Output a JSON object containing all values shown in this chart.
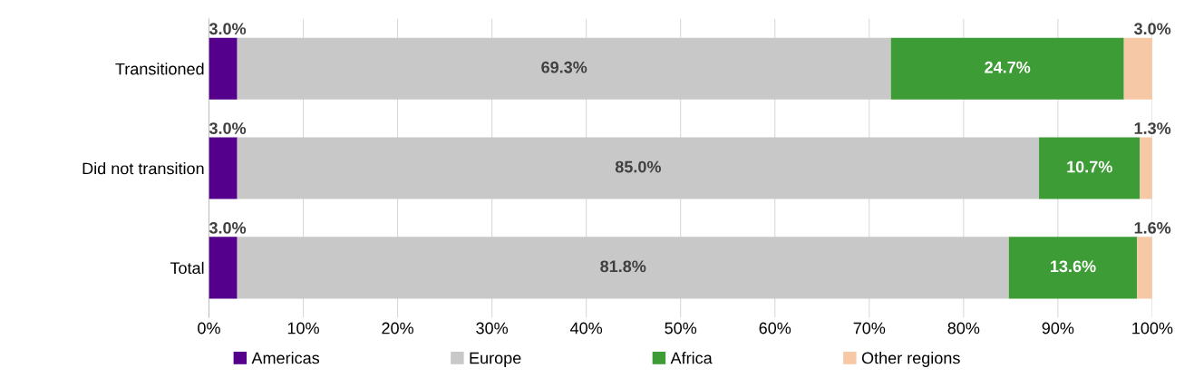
{
  "chart_data": {
    "type": "bar",
    "orientation": "horizontal",
    "stacked": true,
    "categories": [
      "Transitioned",
      "Did not transition",
      "Total"
    ],
    "series": [
      {
        "name": "Americas",
        "color": "#55008c",
        "values": [
          3.0,
          3.0,
          3.0
        ],
        "value_labels": [
          "3.0%",
          "3.0%",
          "3.0%"
        ]
      },
      {
        "name": "Europe",
        "color": "#c8c8c8",
        "values": [
          69.3,
          85.0,
          81.8
        ],
        "value_labels": [
          "69.3%",
          "85.0%",
          "81.8%"
        ]
      },
      {
        "name": "Africa",
        "color": "#3d9c35",
        "values": [
          24.7,
          10.7,
          13.6
        ],
        "value_labels": [
          "24.7%",
          "10.7%",
          "13.6%"
        ]
      },
      {
        "name": "Other regions",
        "color": "#f7c8a6",
        "values": [
          3.0,
          1.3,
          1.6
        ],
        "value_labels": [
          "3.0%",
          "1.3%",
          "1.6%"
        ]
      }
    ],
    "xlim": [
      0,
      100
    ],
    "xticks": [
      {
        "value": 0,
        "label": "0%"
      },
      {
        "value": 10,
        "label": "10%"
      },
      {
        "value": 20,
        "label": "20%"
      },
      {
        "value": 30,
        "label": "30%"
      },
      {
        "value": 40,
        "label": "40%"
      },
      {
        "value": 50,
        "label": "50%"
      },
      {
        "value": 60,
        "label": "60%"
      },
      {
        "value": 70,
        "label": "70%"
      },
      {
        "value": 80,
        "label": "80%"
      },
      {
        "value": 90,
        "label": "90%"
      },
      {
        "value": 100,
        "label": "100%"
      }
    ],
    "grid": "x",
    "legend": "bottom"
  }
}
